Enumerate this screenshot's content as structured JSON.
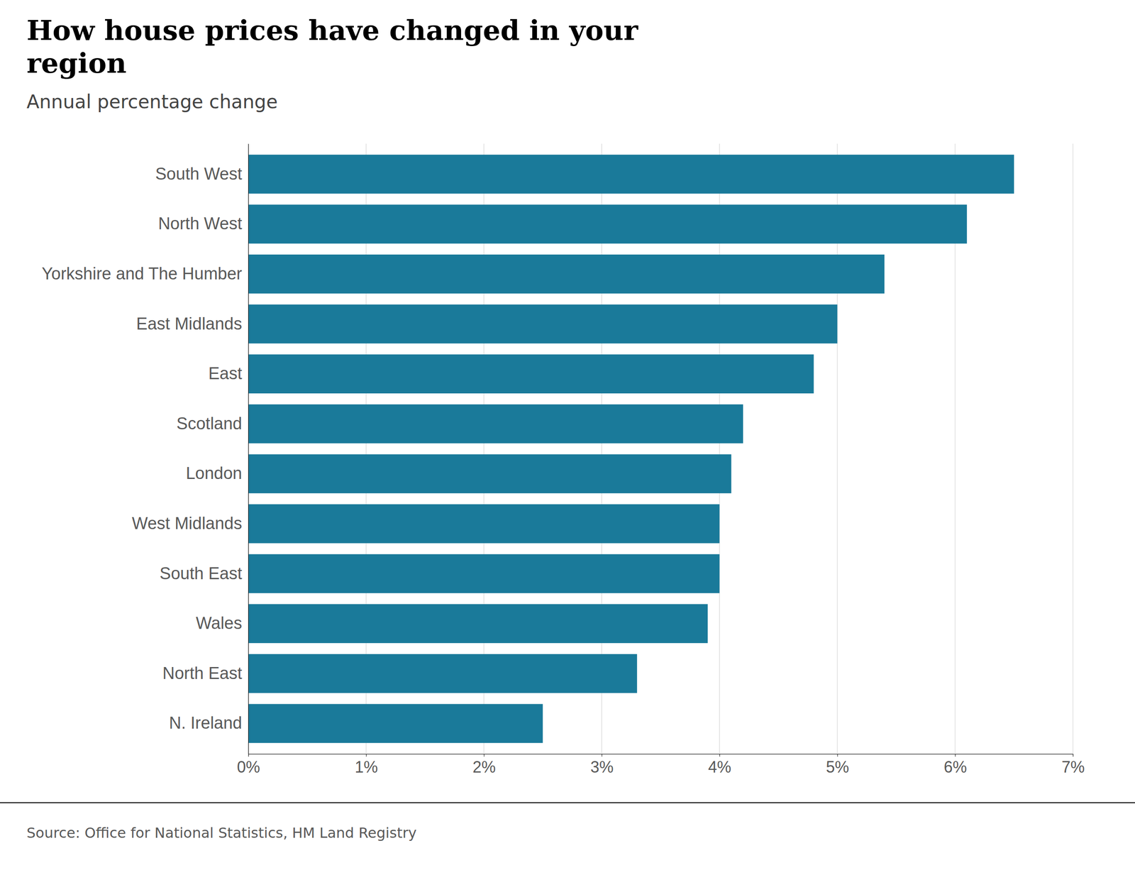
{
  "chart_data": {
    "type": "bar",
    "orientation": "horizontal",
    "title": "How house prices have changed in your\nregion",
    "subtitle": "Annual percentage change",
    "source": "Source: Office for National Statistics, HM Land Registry",
    "categories": [
      "South West",
      "North West",
      "Yorkshire and The Humber",
      "East Midlands",
      "East",
      "Scotland",
      "London",
      "West Midlands",
      "South East",
      "Wales",
      "North East",
      "N. Ireland"
    ],
    "values": [
      6.5,
      6.1,
      5.4,
      5.0,
      4.8,
      4.2,
      4.1,
      4.0,
      4.0,
      3.9,
      3.3,
      2.5
    ],
    "color": "#1a7a9a",
    "xlim": [
      0,
      7
    ],
    "xticks": [
      {
        "value": 0,
        "label": "0%"
      },
      {
        "value": 1,
        "label": "1%"
      },
      {
        "value": 2,
        "label": "2%"
      },
      {
        "value": 3,
        "label": "3%"
      },
      {
        "value": 4,
        "label": "4%"
      },
      {
        "value": 5,
        "label": "5%"
      },
      {
        "value": 6,
        "label": "6%"
      },
      {
        "value": 7,
        "label": "7%"
      }
    ],
    "grid": true
  }
}
